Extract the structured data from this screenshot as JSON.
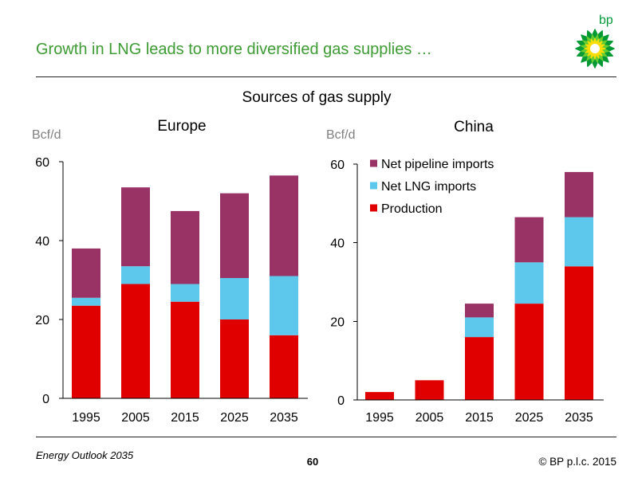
{
  "slide": {
    "title": "Growth in LNG leads to more diversified gas supplies …",
    "logo_text": "bp",
    "subtitle": "Sources of gas supply"
  },
  "colors": {
    "title": "#3c9b32",
    "brand_green": "#0a9a3c",
    "logo_outer": "#009933",
    "logo_mid": "#66cc33",
    "logo_inner": "#ffdd00",
    "rules": "#222222"
  },
  "chart_data": [
    {
      "type": "bar",
      "stacked": true,
      "title": "Europe",
      "ylabel": "Bcf/d",
      "ylim": [
        0,
        60
      ],
      "yticks": [
        0,
        20,
        40,
        60
      ],
      "grid": false,
      "legend": "none",
      "categories": [
        "1995",
        "2005",
        "2015",
        "2025",
        "2035"
      ],
      "series": [
        {
          "name": "Production",
          "color": "#e00000",
          "values": [
            23.5,
            29,
            24.5,
            20,
            16
          ]
        },
        {
          "name": "Net LNG imports",
          "color": "#5ec8ec",
          "values": [
            2,
            4.5,
            4.5,
            10.5,
            15
          ]
        },
        {
          "name": "Net pipeline imports",
          "color": "#993366",
          "values": [
            12.5,
            20,
            18.5,
            21.5,
            25.5
          ]
        }
      ]
    },
    {
      "type": "bar",
      "stacked": true,
      "title": "China",
      "ylabel": "Bcf/d",
      "ylim": [
        0,
        60
      ],
      "yticks": [
        0,
        20,
        40,
        60
      ],
      "grid": false,
      "legend": "top-left",
      "categories": [
        "1995",
        "2005",
        "2015",
        "2025",
        "2035"
      ],
      "series": [
        {
          "name": "Production",
          "color": "#e00000",
          "values": [
            2,
            5,
            16,
            24.5,
            34
          ]
        },
        {
          "name": "Net LNG imports",
          "color": "#5ec8ec",
          "values": [
            0,
            0,
            5,
            10.5,
            12.5
          ]
        },
        {
          "name": "Net pipeline imports",
          "color": "#993366",
          "values": [
            0,
            0,
            3.5,
            11.5,
            11.5
          ]
        }
      ]
    }
  ],
  "footer": {
    "publication": "Energy Outlook 2035",
    "page_number": "60",
    "copyright": "© BP p.l.c. 2015"
  }
}
